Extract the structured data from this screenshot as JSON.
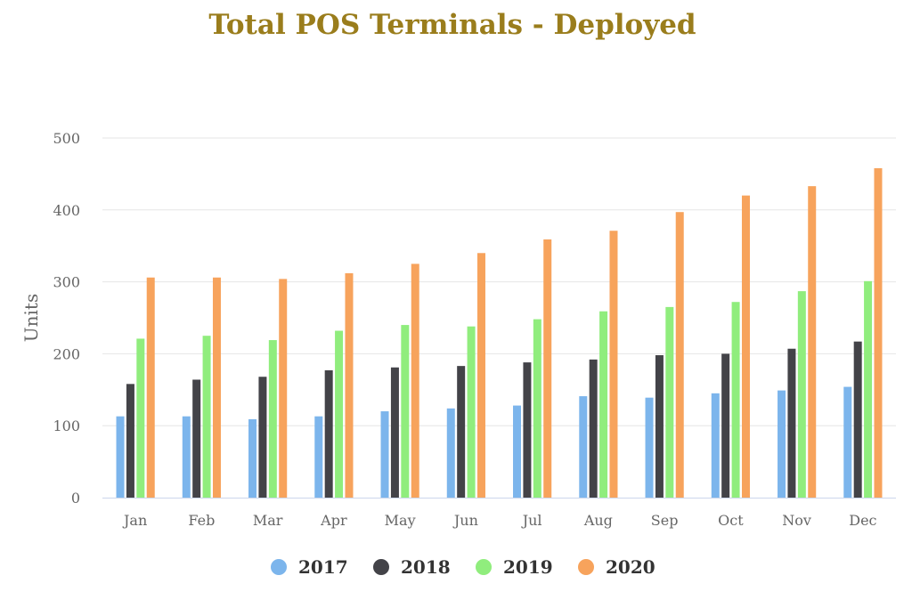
{
  "chart_data": {
    "type": "bar",
    "title": "Total POS Terminals - Deployed",
    "xlabel": "",
    "ylabel": "Units",
    "ylim": [
      0,
      500
    ],
    "yticks": [
      0,
      100,
      200,
      300,
      400,
      500
    ],
    "grid": true,
    "legend_position": "bottom",
    "categories": [
      "Jan",
      "Feb",
      "Mar",
      "Apr",
      "May",
      "Jun",
      "Jul",
      "Aug",
      "Sep",
      "Oct",
      "Nov",
      "Dec"
    ],
    "series": [
      {
        "name": "2017",
        "color": "#7cb5ec",
        "values": [
          113,
          113,
          109,
          113,
          120,
          124,
          128,
          141,
          139,
          145,
          149,
          154
        ]
      },
      {
        "name": "2018",
        "color": "#434348",
        "values": [
          158,
          164,
          168,
          177,
          181,
          183,
          188,
          192,
          198,
          200,
          207,
          217
        ]
      },
      {
        "name": "2019",
        "color": "#90ed7d",
        "values": [
          221,
          225,
          219,
          232,
          240,
          238,
          248,
          259,
          265,
          272,
          287,
          301
        ]
      },
      {
        "name": "2020",
        "color": "#f7a35c",
        "values": [
          306,
          306,
          304,
          312,
          325,
          340,
          359,
          371,
          397,
          420,
          433,
          458
        ]
      }
    ]
  }
}
